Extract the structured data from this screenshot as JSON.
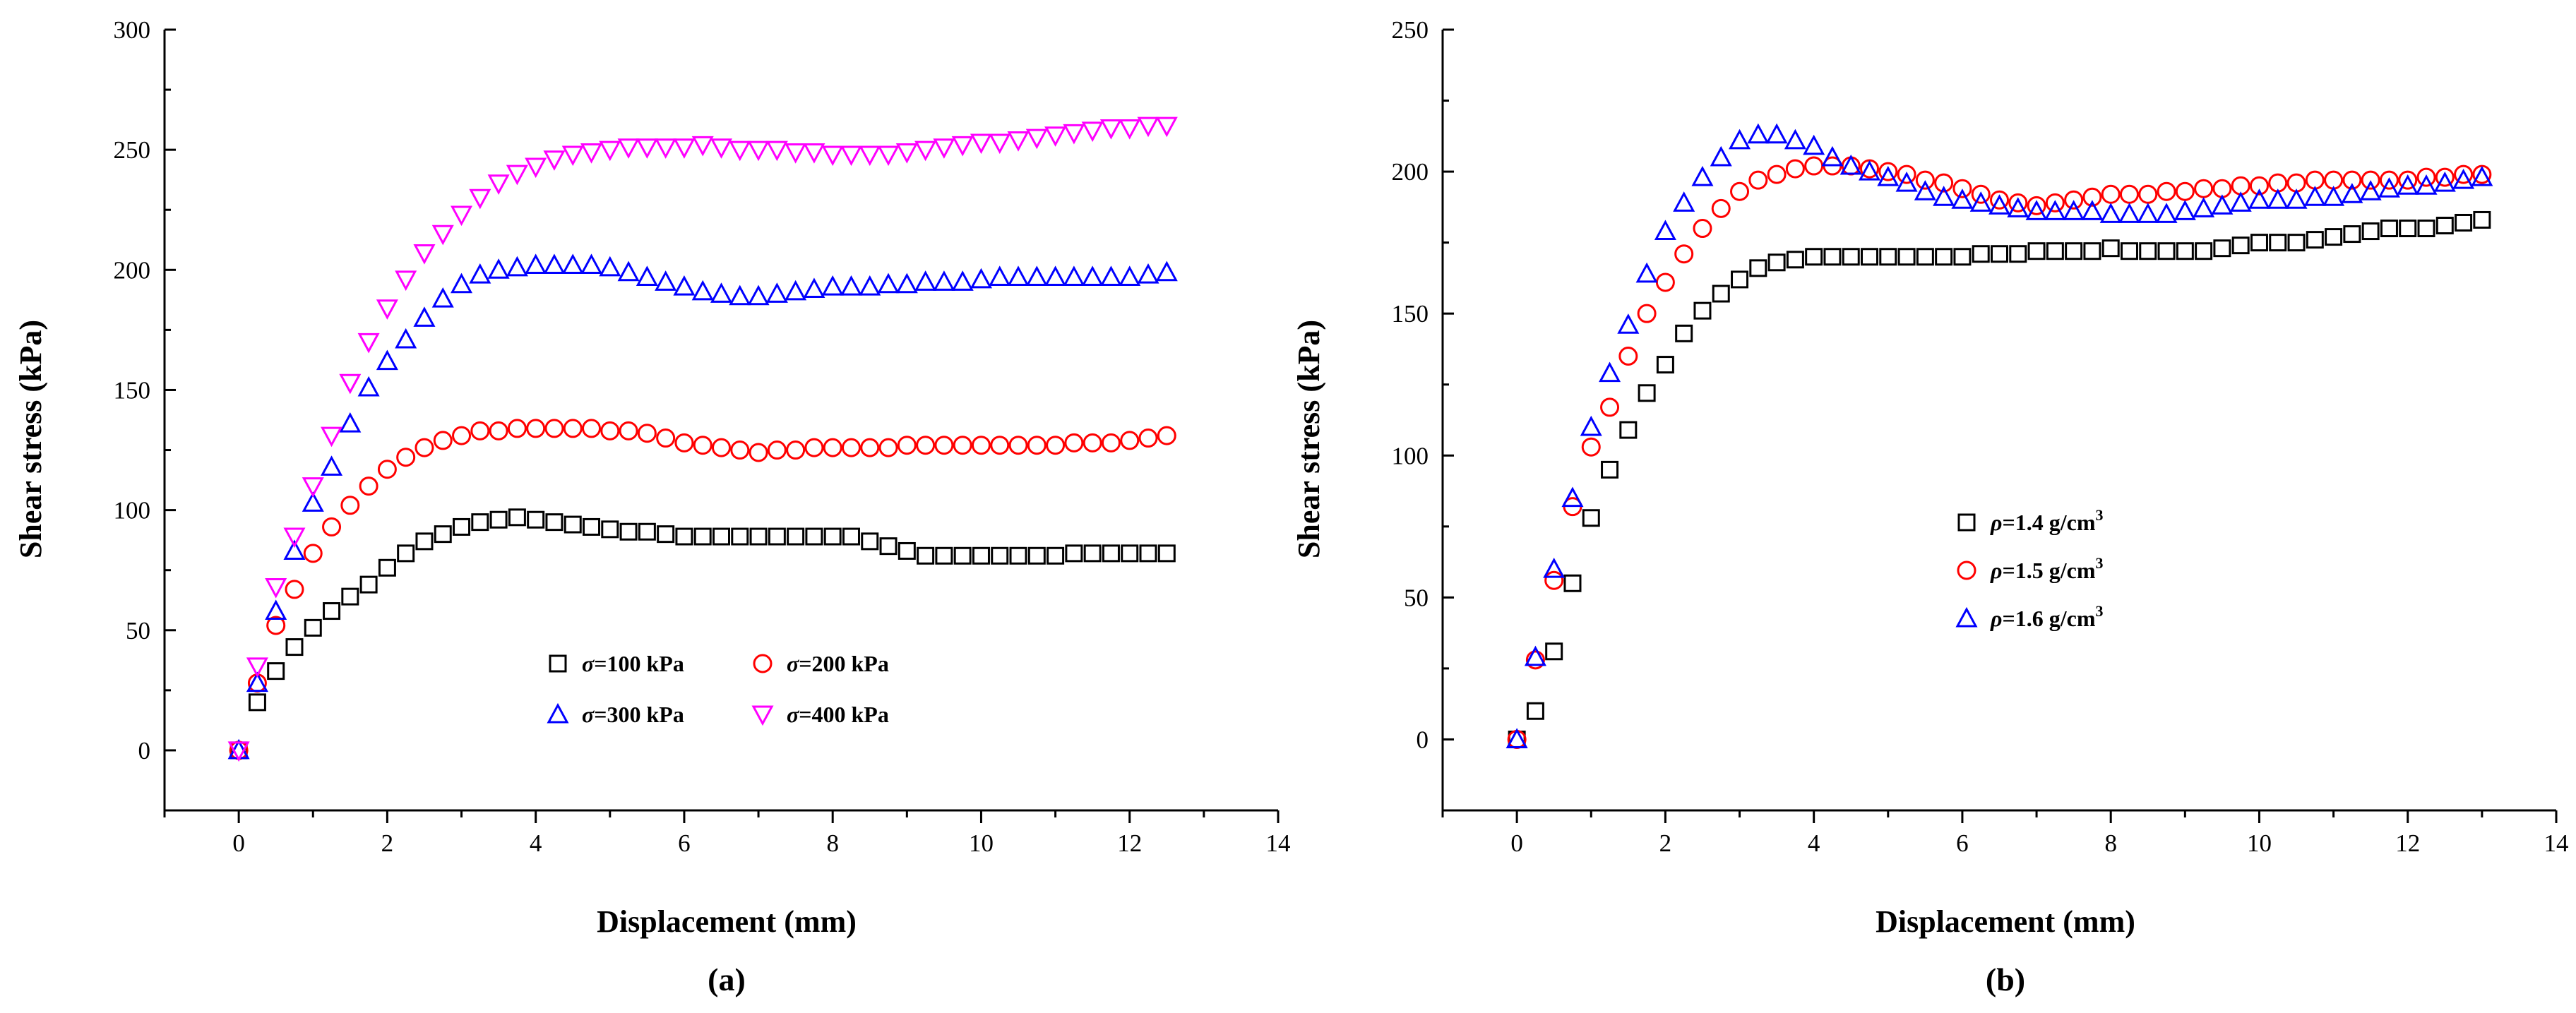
{
  "chart_data": [
    {
      "type": "scatter",
      "panel_label": "(a)",
      "xlabel": "Displacement (mm)",
      "ylabel": "Shear stress (kPa)",
      "xlim": [
        -1,
        14
      ],
      "ylim": [
        -25,
        300
      ],
      "xticks": [
        0,
        2,
        4,
        6,
        8,
        10,
        12,
        14
      ],
      "yticks": [
        0,
        50,
        100,
        150,
        200,
        250,
        300
      ],
      "x": [
        0,
        0.25,
        0.5,
        0.75,
        1.0,
        1.25,
        1.5,
        1.75,
        2.0,
        2.25,
        2.5,
        2.75,
        3.0,
        3.25,
        3.5,
        3.75,
        4.0,
        4.25,
        4.5,
        4.75,
        5.0,
        5.25,
        5.5,
        5.75,
        6.0,
        6.25,
        6.5,
        6.75,
        7.0,
        7.25,
        7.5,
        7.75,
        8.0,
        8.25,
        8.5,
        8.75,
        9.0,
        9.25,
        9.5,
        9.75,
        10.0,
        10.25,
        10.5,
        10.75,
        11.0,
        11.25,
        11.5,
        11.75,
        12.0,
        12.25,
        12.5
      ],
      "series": [
        {
          "name": "σ=100 kPa",
          "sym": "σ",
          "rest": "=100 kPa",
          "marker": "square",
          "color": "#000000",
          "values": [
            0,
            20,
            33,
            43,
            51,
            58,
            64,
            69,
            76,
            82,
            87,
            90,
            93,
            95,
            96,
            97,
            96,
            95,
            94,
            93,
            92,
            91,
            91,
            90,
            89,
            89,
            89,
            89,
            89,
            89,
            89,
            89,
            89,
            89,
            87,
            85,
            83,
            81,
            81,
            81,
            81,
            81,
            81,
            81,
            81,
            82,
            82,
            82,
            82,
            82,
            82
          ]
        },
        {
          "name": "σ=200 kPa",
          "sym": "σ",
          "rest": "=200 kPa",
          "marker": "circle",
          "color": "#ff0000",
          "values": [
            0,
            28,
            52,
            67,
            82,
            93,
            102,
            110,
            117,
            122,
            126,
            129,
            131,
            133,
            133,
            134,
            134,
            134,
            134,
            134,
            133,
            133,
            132,
            130,
            128,
            127,
            126,
            125,
            124,
            125,
            125,
            126,
            126,
            126,
            126,
            126,
            127,
            127,
            127,
            127,
            127,
            127,
            127,
            127,
            127,
            128,
            128,
            128,
            129,
            130,
            131
          ]
        },
        {
          "name": "σ=300 kPa",
          "sym": "σ",
          "rest": "=300 kPa",
          "marker": "triangle-up",
          "color": "#0000ff",
          "values": [
            0,
            28,
            58,
            83,
            103,
            118,
            136,
            151,
            162,
            171,
            180,
            188,
            194,
            198,
            200,
            201,
            202,
            202,
            202,
            202,
            201,
            199,
            197,
            195,
            193,
            191,
            190,
            189,
            189,
            190,
            191,
            192,
            193,
            193,
            193,
            194,
            194,
            195,
            195,
            195,
            196,
            197,
            197,
            197,
            197,
            197,
            197,
            197,
            197,
            198,
            199
          ]
        },
        {
          "name": "σ=400 kPa",
          "sym": "σ",
          "rest": "=400 kPa",
          "marker": "triangle-down",
          "color": "#ff00ff",
          "values": [
            0,
            35,
            68,
            89,
            110,
            131,
            153,
            170,
            184,
            196,
            207,
            215,
            223,
            230,
            236,
            240,
            243,
            246,
            248,
            249,
            250,
            251,
            251,
            251,
            251,
            252,
            251,
            250,
            250,
            250,
            249,
            249,
            248,
            248,
            248,
            248,
            249,
            250,
            251,
            252,
            253,
            253,
            254,
            255,
            256,
            257,
            258,
            259,
            259,
            260,
            260
          ]
        }
      ]
    },
    {
      "type": "scatter",
      "panel_label": "(b)",
      "xlabel": "Displacement (mm)",
      "ylabel": "Shear stress (kPa)",
      "xlim": [
        -1,
        14
      ],
      "ylim": [
        -25,
        250
      ],
      "xticks": [
        0,
        2,
        4,
        6,
        8,
        10,
        12,
        14
      ],
      "yticks": [
        0,
        50,
        100,
        150,
        200,
        250
      ],
      "x": [
        0,
        0.25,
        0.5,
        0.75,
        1.0,
        1.25,
        1.5,
        1.75,
        2.0,
        2.25,
        2.5,
        2.75,
        3.0,
        3.25,
        3.5,
        3.75,
        4.0,
        4.25,
        4.5,
        4.75,
        5.0,
        5.25,
        5.5,
        5.75,
        6.0,
        6.25,
        6.5,
        6.75,
        7.0,
        7.25,
        7.5,
        7.75,
        8.0,
        8.25,
        8.5,
        8.75,
        9.0,
        9.25,
        9.5,
        9.75,
        10.0,
        10.25,
        10.5,
        10.75,
        11.0,
        11.25,
        11.5,
        11.75,
        12.0,
        12.25,
        12.5,
        12.75,
        13.0
      ],
      "series": [
        {
          "name": "ρ=1.4 g/cm3",
          "sym": "ρ",
          "rest": "=1.4 g/cm",
          "sup": "3",
          "marker": "square",
          "color": "#000000",
          "values": [
            0,
            10,
            31,
            55,
            78,
            95,
            109,
            122,
            132,
            143,
            151,
            157,
            162,
            166,
            168,
            169,
            170,
            170,
            170,
            170,
            170,
            170,
            170,
            170,
            170,
            171,
            171,
            171,
            172,
            172,
            172,
            172,
            173,
            172,
            172,
            172,
            172,
            172,
            173,
            174,
            175,
            175,
            175,
            176,
            177,
            178,
            179,
            180,
            180,
            180,
            181,
            182,
            183
          ]
        },
        {
          "name": "ρ=1.5 g/cm3",
          "sym": "ρ",
          "rest": "=1.5 g/cm",
          "sup": "3",
          "marker": "circle",
          "color": "#ff0000",
          "values": [
            0,
            28,
            56,
            82,
            103,
            117,
            135,
            150,
            161,
            171,
            180,
            187,
            193,
            197,
            199,
            201,
            202,
            202,
            202,
            201,
            200,
            199,
            197,
            196,
            194,
            192,
            190,
            189,
            188,
            189,
            190,
            191,
            192,
            192,
            192,
            193,
            193,
            194,
            194,
            195,
            195,
            196,
            196,
            197,
            197,
            197,
            197,
            197,
            197,
            198,
            198,
            199,
            199
          ]
        },
        {
          "name": "ρ=1.6 g/cm3",
          "sym": "ρ",
          "rest": "=1.6 g/cm",
          "sup": "3",
          "marker": "triangle-up",
          "color": "#0000ff",
          "values": [
            0,
            29,
            60,
            85,
            110,
            129,
            146,
            164,
            179,
            189,
            198,
            205,
            211,
            213,
            213,
            211,
            209,
            205,
            202,
            200,
            198,
            196,
            193,
            191,
            190,
            189,
            188,
            187,
            186,
            186,
            186,
            186,
            185,
            185,
            185,
            185,
            186,
            187,
            188,
            189,
            190,
            190,
            190,
            191,
            191,
            192,
            193,
            194,
            195,
            195,
            196,
            197,
            198
          ]
        }
      ]
    }
  ]
}
